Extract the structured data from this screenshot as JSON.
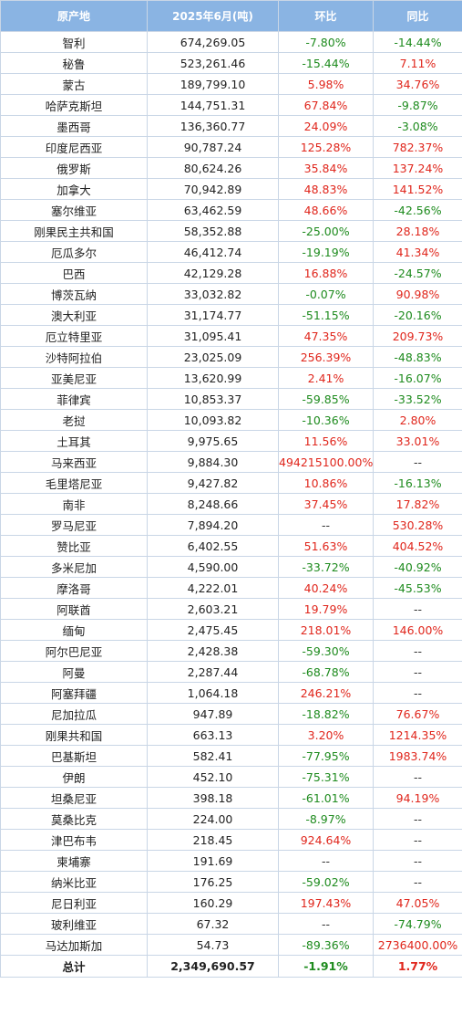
{
  "header": {
    "origin": "原产地",
    "volume": "2025年6月(吨)",
    "mom": "环比",
    "yoy": "同比"
  },
  "colors": {
    "increase": "#e0261c",
    "decrease": "#1e8b1e",
    "header_bg": "#8ab4e3"
  },
  "rows": [
    {
      "origin": "智利",
      "volume": "674,269.05",
      "mom": "-7.80%",
      "yoy": "-14.44%"
    },
    {
      "origin": "秘鲁",
      "volume": "523,261.46",
      "mom": "-15.44%",
      "yoy": "7.11%"
    },
    {
      "origin": "蒙古",
      "volume": "189,799.10",
      "mom": "5.98%",
      "yoy": "34.76%"
    },
    {
      "origin": "哈萨克斯坦",
      "volume": "144,751.31",
      "mom": "67.84%",
      "yoy": "-9.87%"
    },
    {
      "origin": "墨西哥",
      "volume": "136,360.77",
      "mom": "24.09%",
      "yoy": "-3.08%"
    },
    {
      "origin": "印度尼西亚",
      "volume": "90,787.24",
      "mom": "125.28%",
      "yoy": "782.37%"
    },
    {
      "origin": "俄罗斯",
      "volume": "80,624.26",
      "mom": "35.84%",
      "yoy": "137.24%"
    },
    {
      "origin": "加拿大",
      "volume": "70,942.89",
      "mom": "48.83%",
      "yoy": "141.52%"
    },
    {
      "origin": "塞尔维亚",
      "volume": "63,462.59",
      "mom": "48.66%",
      "yoy": "-42.56%"
    },
    {
      "origin": "刚果民主共和国",
      "volume": "58,352.88",
      "mom": "-25.00%",
      "yoy": "28.18%"
    },
    {
      "origin": "厄瓜多尔",
      "volume": "46,412.74",
      "mom": "-19.19%",
      "yoy": "41.34%"
    },
    {
      "origin": "巴西",
      "volume": "42,129.28",
      "mom": "16.88%",
      "yoy": "-24.57%"
    },
    {
      "origin": "博茨瓦纳",
      "volume": "33,032.82",
      "mom": "-0.07%",
      "yoy": "90.98%"
    },
    {
      "origin": "澳大利亚",
      "volume": "31,174.77",
      "mom": "-51.15%",
      "yoy": "-20.16%"
    },
    {
      "origin": "厄立特里亚",
      "volume": "31,095.41",
      "mom": "47.35%",
      "yoy": "209.73%"
    },
    {
      "origin": "沙特阿拉伯",
      "volume": "23,025.09",
      "mom": "256.39%",
      "yoy": "-48.83%"
    },
    {
      "origin": "亚美尼亚",
      "volume": "13,620.99",
      "mom": "2.41%",
      "yoy": "-16.07%"
    },
    {
      "origin": "菲律宾",
      "volume": "10,853.37",
      "mom": "-59.85%",
      "yoy": "-33.52%"
    },
    {
      "origin": "老挝",
      "volume": "10,093.82",
      "mom": "-10.36%",
      "yoy": "2.80%"
    },
    {
      "origin": "土耳其",
      "volume": "9,975.65",
      "mom": "11.56%",
      "yoy": "33.01%"
    },
    {
      "origin": "马来西亚",
      "volume": "9,884.30",
      "mom": "494215100.00%",
      "yoy": "--"
    },
    {
      "origin": "毛里塔尼亚",
      "volume": "9,427.82",
      "mom": "10.86%",
      "yoy": "-16.13%"
    },
    {
      "origin": "南非",
      "volume": "8,248.66",
      "mom": "37.45%",
      "yoy": "17.82%"
    },
    {
      "origin": "罗马尼亚",
      "volume": "7,894.20",
      "mom": "--",
      "yoy": "530.28%"
    },
    {
      "origin": "赞比亚",
      "volume": "6,402.55",
      "mom": "51.63%",
      "yoy": "404.52%"
    },
    {
      "origin": "多米尼加",
      "volume": "4,590.00",
      "mom": "-33.72%",
      "yoy": "-40.92%"
    },
    {
      "origin": "摩洛哥",
      "volume": "4,222.01",
      "mom": "40.24%",
      "yoy": "-45.53%"
    },
    {
      "origin": "阿联酋",
      "volume": "2,603.21",
      "mom": "19.79%",
      "yoy": "--"
    },
    {
      "origin": "缅甸",
      "volume": "2,475.45",
      "mom": "218.01%",
      "yoy": "146.00%"
    },
    {
      "origin": "阿尔巴尼亚",
      "volume": "2,428.38",
      "mom": "-59.30%",
      "yoy": "--"
    },
    {
      "origin": "阿曼",
      "volume": "2,287.44",
      "mom": "-68.78%",
      "yoy": "--"
    },
    {
      "origin": "阿塞拜疆",
      "volume": "1,064.18",
      "mom": "246.21%",
      "yoy": "--"
    },
    {
      "origin": "尼加拉瓜",
      "volume": "947.89",
      "mom": "-18.82%",
      "yoy": "76.67%"
    },
    {
      "origin": "刚果共和国",
      "volume": "663.13",
      "mom": "3.20%",
      "yoy": "1214.35%"
    },
    {
      "origin": "巴基斯坦",
      "volume": "582.41",
      "mom": "-77.95%",
      "yoy": "1983.74%"
    },
    {
      "origin": "伊朗",
      "volume": "452.10",
      "mom": "-75.31%",
      "yoy": "--"
    },
    {
      "origin": "坦桑尼亚",
      "volume": "398.18",
      "mom": "-61.01%",
      "yoy": "94.19%"
    },
    {
      "origin": "莫桑比克",
      "volume": "224.00",
      "mom": "-8.97%",
      "yoy": "--"
    },
    {
      "origin": "津巴布韦",
      "volume": "218.45",
      "mom": "924.64%",
      "yoy": "--"
    },
    {
      "origin": "柬埔寨",
      "volume": "191.69",
      "mom": "--",
      "yoy": "--"
    },
    {
      "origin": "纳米比亚",
      "volume": "176.25",
      "mom": "-59.02%",
      "yoy": "--"
    },
    {
      "origin": "尼日利亚",
      "volume": "160.29",
      "mom": "197.43%",
      "yoy": "47.05%"
    },
    {
      "origin": "玻利维亚",
      "volume": "67.32",
      "mom": "--",
      "yoy": "-74.79%"
    },
    {
      "origin": "马达加斯加",
      "volume": "54.73",
      "mom": "-89.36%",
      "yoy": "2736400.00%"
    }
  ],
  "total": {
    "origin": "总计",
    "volume": "2,349,690.57",
    "mom": "-1.91%",
    "yoy": "1.77%"
  }
}
